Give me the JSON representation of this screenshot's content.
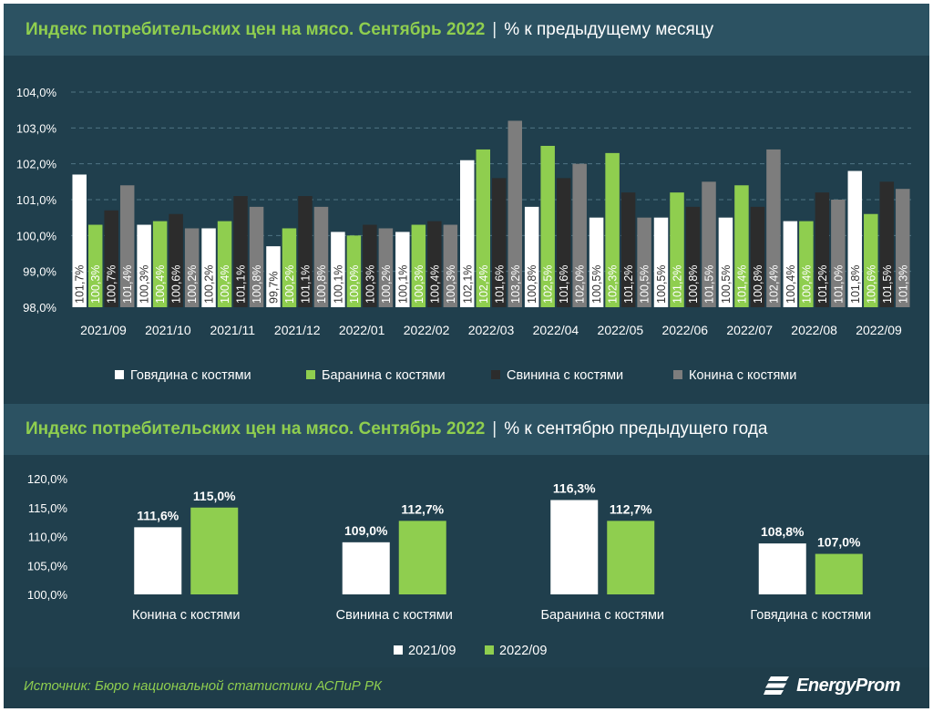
{
  "chart_top": {
    "title": "Индекс потребительских цен на мясо. Сентябрь 2022",
    "subtitle": "% к предыдущему месяцу",
    "chart_data": {
      "type": "bar",
      "categories": [
        "2021/09",
        "2021/10",
        "2021/11",
        "2021/12",
        "2022/01",
        "2022/02",
        "2022/03",
        "2022/04",
        "2022/05",
        "2022/06",
        "2022/07",
        "2022/08",
        "2022/09"
      ],
      "series": [
        {
          "name": "Говядина с костями",
          "color": "#ffffff",
          "label_color": "#333333",
          "values": [
            101.7,
            100.3,
            100.2,
            99.7,
            100.1,
            100.1,
            102.1,
            100.8,
            100.5,
            100.5,
            100.5,
            100.4,
            101.8
          ],
          "labels": [
            "101,7%",
            "100,3%",
            "100,2%",
            "99,7%",
            "100,1%",
            "100,1%",
            "102,1%",
            "100,8%",
            "100,5%",
            "100,5%",
            "100,5%",
            "100,4%",
            "101,8%"
          ]
        },
        {
          "name": "Баранина с костями",
          "color": "#8fce4f",
          "label_color": "#ffffff",
          "values": [
            100.3,
            100.4,
            100.4,
            100.2,
            100.0,
            100.3,
            102.4,
            102.5,
            102.3,
            101.2,
            101.4,
            100.4,
            100.6
          ],
          "labels": [
            "100,3%",
            "100,4%",
            "100,4%",
            "100,2%",
            "100,0%",
            "100,3%",
            "102,4%",
            "102,5%",
            "102,3%",
            "101,2%",
            "101,4%",
            "100,4%",
            "100,6%"
          ]
        },
        {
          "name": "Свинина с костями",
          "color": "#2c2c2c",
          "label_color": "#ffffff",
          "values": [
            100.7,
            100.6,
            101.1,
            101.1,
            100.3,
            100.4,
            101.6,
            101.6,
            101.2,
            100.8,
            100.8,
            101.2,
            101.5
          ],
          "labels": [
            "100,7%",
            "100,6%",
            "101,1%",
            "101,1%",
            "100,3%",
            "100,4%",
            "101,6%",
            "101,6%",
            "101,2%",
            "100,8%",
            "100,8%",
            "101,2%",
            "101,5%"
          ]
        },
        {
          "name": "Конина с костями",
          "color": "#7d7d7d",
          "label_color": "#ffffff",
          "values": [
            101.4,
            100.2,
            100.8,
            100.8,
            100.2,
            100.3,
            103.2,
            102.0,
            100.5,
            101.5,
            102.4,
            101.0,
            101.3
          ],
          "labels": [
            "101,4%",
            "100,2%",
            "100,8%",
            "100,8%",
            "100,2%",
            "100,3%",
            "103,2%",
            "102,0%",
            "100,5%",
            "101,5%",
            "102,4%",
            "101,0%",
            "101,3%"
          ]
        }
      ],
      "ylim": [
        98,
        104
      ],
      "yticks": [
        98,
        99,
        100,
        101,
        102,
        103,
        104
      ],
      "ytick_labels": [
        "98,0%",
        "99,0%",
        "100,0%",
        "101,0%",
        "102,0%",
        "103,0%",
        "104,0%"
      ],
      "grid": true,
      "legend_position": "bottom"
    }
  },
  "chart_bottom": {
    "title": "Индекс потребительских цен на мясо. Сентябрь 2022",
    "subtitle": "% к сентябрю предыдущего года",
    "chart_data": {
      "type": "bar",
      "categories": [
        "Конина с костями",
        "Свинина с костями",
        "Баранина с костями",
        "Говядина с костями"
      ],
      "series": [
        {
          "name": "2021/09",
          "color": "#ffffff",
          "values": [
            111.6,
            109.0,
            116.3,
            108.8
          ],
          "labels": [
            "111,6%",
            "109,0%",
            "116,3%",
            "108,8%"
          ]
        },
        {
          "name": "2022/09",
          "color": "#8fce4f",
          "values": [
            115.0,
            112.7,
            112.7,
            107.0
          ],
          "labels": [
            "115,0%",
            "112,7%",
            "112,7%",
            "107,0%"
          ]
        }
      ],
      "ylim": [
        100,
        120
      ],
      "yticks": [
        100,
        105,
        110,
        115,
        120
      ],
      "ytick_labels": [
        "100,0%",
        "105,0%",
        "110,0%",
        "115,0%",
        "120,0%"
      ],
      "grid": false,
      "legend_position": "bottom"
    }
  },
  "footer": {
    "source": "Источник: Бюро национальной статистики АСПиР РК",
    "logo_text": "EnergyProm",
    "logo_icon": "energyprom-logo-icon"
  },
  "colors": {
    "background": "#244553",
    "panel": "#203f4d",
    "title_band": "#2c5262",
    "accent_green": "#8fce4f"
  }
}
